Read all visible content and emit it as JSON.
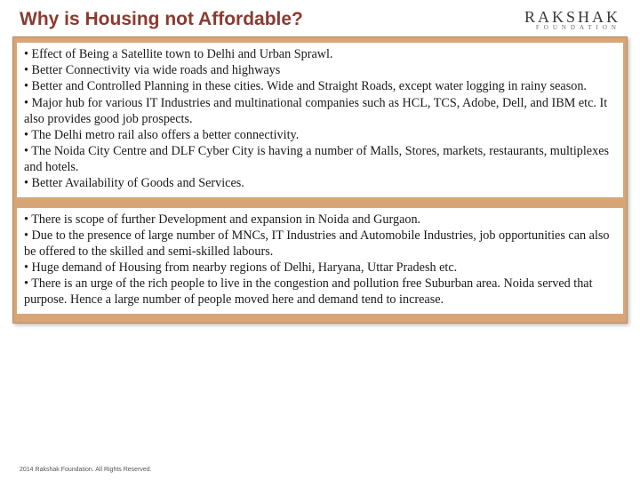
{
  "header": {
    "title": "Why is Housing not Affordable?",
    "logo_main": "RAKSHAK",
    "logo_sub": "FOUNDATION"
  },
  "section1": {
    "lines": [
      "• Effect of Being a Satellite town to Delhi and Urban Sprawl.",
      "• Better Connectivity via wide roads and highways",
      "• Better and Controlled Planning in these cities. Wide and Straight Roads, except water logging in rainy season.",
      "• Major hub for various IT Industries and multinational companies such as HCL, TCS, Adobe, Dell, and IBM etc. It also provides good job prospects.",
      "• The Delhi metro rail also offers a better connectivity.",
      "• The Noida City Centre and DLF Cyber City is having a number of Malls, Stores, markets, restaurants, multiplexes and hotels.",
      "• Better Availability of Goods and Services."
    ]
  },
  "section2": {
    "lines": [
      "• There is scope of further Development and expansion in Noida and Gurgaon.",
      "• Due to the presence of large number of MNCs, IT Industries and Automobile Industries, job opportunities can also be offered to the skilled and semi-skilled labours.",
      "• Huge demand of Housing from nearby regions of Delhi, Haryana, Uttar Pradesh etc.",
      "• There is an urge of the rich people to live in the congestion and pollution free Suburban area. Noida served that purpose. Hence a large number of people moved here and demand tend to increase."
    ]
  },
  "footer": {
    "text": "2014 Rakshak Foundation. All Rights Reserved."
  },
  "colors": {
    "title_color": "#8b3a2f",
    "box_bg": "#d8a576",
    "box_border": "#b88a5c",
    "panel_bg": "#ffffff",
    "text_color": "#1a1a1a"
  }
}
